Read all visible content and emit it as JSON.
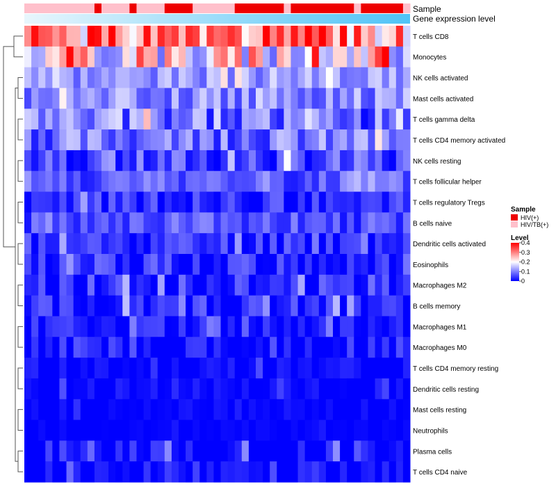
{
  "chart_data": {
    "type": "heatmap",
    "title": "",
    "annotation_rows": [
      "Sample",
      "Gene expression level"
    ],
    "rows": [
      "T cells CD8",
      "Monocytes",
      "NK cells activated",
      "Mast cells activated",
      "T cells gamma delta",
      "T cells CD4 memory activated",
      "NK cells resting",
      "T cells follicular helper",
      "T cells regulatory  Tregs",
      "B cells naive",
      "Dendritic cells activated",
      "Eosinophils",
      "Macrophages M2",
      "B cells memory",
      "Macrophages M1",
      "Macrophages M0",
      "T cells CD4 memory resting",
      "Dendritic cells resting",
      "Mast cells resting",
      "Neutrophils",
      "Plasma cells",
      "T cells CD4 naive"
    ],
    "n_columns": 55,
    "sample_groups": [
      "HIV/TB(+)",
      "HIV/TB(+)",
      "HIV/TB(+)",
      "HIV/TB(+)",
      "HIV/TB(+)",
      "HIV/TB(+)",
      "HIV/TB(+)",
      "HIV/TB(+)",
      "HIV/TB(+)",
      "HIV/TB(+)",
      "HIV(+)",
      "HIV/TB(+)",
      "HIV/TB(+)",
      "HIV/TB(+)",
      "HIV/TB(+)",
      "HIV(+)",
      "HIV/TB(+)",
      "HIV/TB(+)",
      "HIV/TB(+)",
      "HIV/TB(+)",
      "HIV(+)",
      "HIV(+)",
      "HIV(+)",
      "HIV(+)",
      "HIV/TB(+)",
      "HIV/TB(+)",
      "HIV/TB(+)",
      "HIV/TB(+)",
      "HIV/TB(+)",
      "HIV/TB(+)",
      "HIV(+)",
      "HIV(+)",
      "HIV(+)",
      "HIV(+)",
      "HIV(+)",
      "HIV(+)",
      "HIV(+)",
      "HIV/TB(+)",
      "HIV(+)",
      "HIV(+)",
      "HIV(+)",
      "HIV(+)",
      "HIV(+)",
      "HIV(+)",
      "HIV(+)",
      "HIV(+)",
      "HIV(+)",
      "HIV/TB(+)",
      "HIV(+)",
      "HIV(+)",
      "HIV(+)",
      "HIV(+)",
      "HIV(+)",
      "HIV(+)",
      "HIV/TB(+)"
    ],
    "row_profiles": [
      {
        "base": 0.28,
        "amp": 0.12,
        "seed": 1
      },
      {
        "base": 0.22,
        "amp": 0.14,
        "seed": 2
      },
      {
        "base": 0.12,
        "amp": 0.05,
        "seed": 3
      },
      {
        "base": 0.11,
        "amp": 0.06,
        "seed": 4
      },
      {
        "base": 0.09,
        "amp": 0.09,
        "seed": 5
      },
      {
        "base": 0.09,
        "amp": 0.07,
        "seed": 6
      },
      {
        "base": 0.05,
        "amp": 0.07,
        "seed": 7
      },
      {
        "base": 0.07,
        "amp": 0.05,
        "seed": 8
      },
      {
        "base": 0.03,
        "amp": 0.05,
        "seed": 9
      },
      {
        "base": 0.06,
        "amp": 0.05,
        "seed": 10
      },
      {
        "base": 0.04,
        "amp": 0.05,
        "seed": 11
      },
      {
        "base": 0.03,
        "amp": 0.06,
        "seed": 12
      },
      {
        "base": 0.02,
        "amp": 0.07,
        "seed": 13
      },
      {
        "base": 0.02,
        "amp": 0.06,
        "seed": 14
      },
      {
        "base": 0.01,
        "amp": 0.05,
        "seed": 15
      },
      {
        "base": 0.01,
        "amp": 0.06,
        "seed": 16
      },
      {
        "base": 0.0,
        "amp": 0.03,
        "seed": 17
      },
      {
        "base": 0.0,
        "amp": 0.03,
        "seed": 18
      },
      {
        "base": 0.0,
        "amp": 0.02,
        "seed": 19
      },
      {
        "base": 0.0,
        "amp": 0.01,
        "seed": 20
      },
      {
        "base": 0.01,
        "amp": 0.05,
        "seed": 21
      },
      {
        "base": 0.0,
        "amp": 0.05,
        "seed": 22
      }
    ],
    "value_range": [
      0,
      0.4
    ],
    "color_scale": {
      "low": "#0000FF",
      "mid": "#FFFFFF",
      "high": "#FF0000",
      "mid_value": 0.2
    },
    "legend": {
      "sample_title": "Sample",
      "sample_entries": [
        {
          "label": "HIV(+)",
          "color": "#EE0000"
        },
        {
          "label": "HIV/TB(+)",
          "color": "#FFC0CB"
        }
      ],
      "level_title": "Level",
      "level_ticks": [
        {
          "value": 0.4,
          "label": "0.4"
        },
        {
          "value": 0.3,
          "label": "0.3"
        },
        {
          "value": 0.2,
          "label": "0.2"
        },
        {
          "value": 0.1,
          "label": "0.1"
        },
        {
          "value": 0.0,
          "label": "0"
        }
      ],
      "position": "right"
    },
    "gene_expression_gradient": {
      "from": "#E8F6FC",
      "to": "#4FC3F7"
    },
    "dendrogram": "rows"
  }
}
